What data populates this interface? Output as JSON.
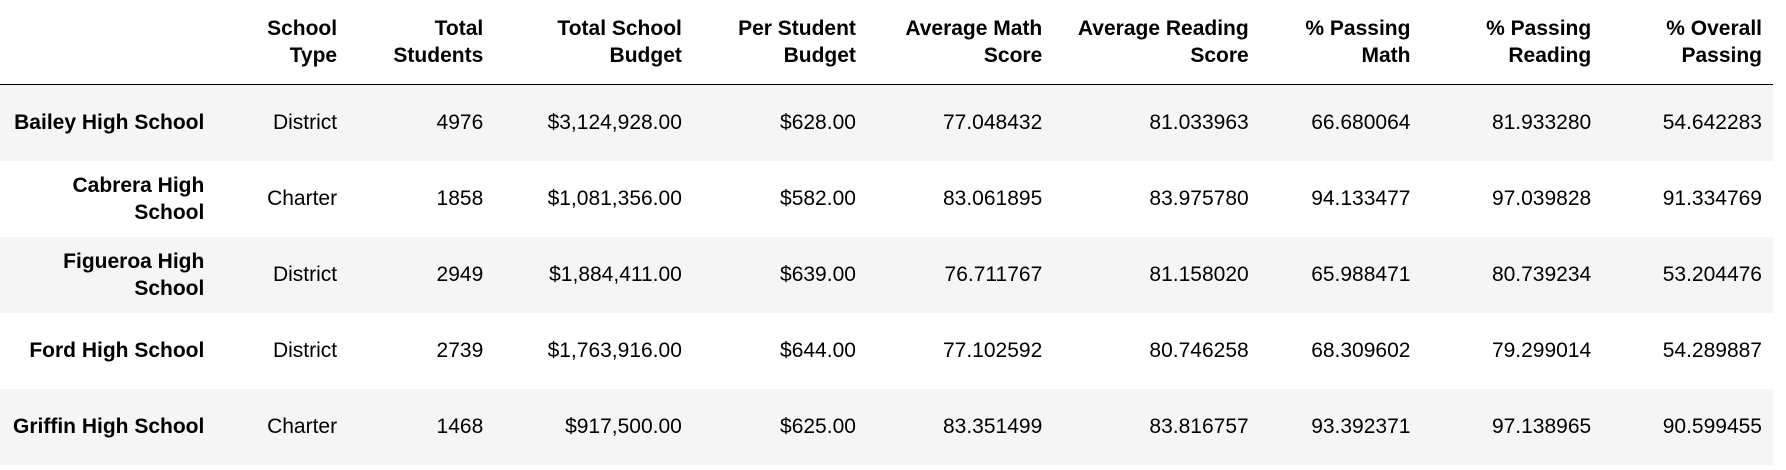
{
  "table": {
    "columns": [
      "",
      "School Type",
      "Total Students",
      "Total School Budget",
      "Per Student Budget",
      "Average Math Score",
      "Average Reading Score",
      "% Passing Math",
      "% Passing Reading",
      "% Overall Passing"
    ],
    "rows": [
      {
        "name": "Bailey High School",
        "cells": [
          "District",
          "4976",
          "$3,124,928.00",
          "$628.00",
          "77.048432",
          "81.033963",
          "66.680064",
          "81.933280",
          "54.642283"
        ]
      },
      {
        "name": "Cabrera High School",
        "cells": [
          "Charter",
          "1858",
          "$1,081,356.00",
          "$582.00",
          "83.061895",
          "83.975780",
          "94.133477",
          "97.039828",
          "91.334769"
        ]
      },
      {
        "name": "Figueroa High School",
        "cells": [
          "District",
          "2949",
          "$1,884,411.00",
          "$639.00",
          "76.711767",
          "81.158020",
          "65.988471",
          "80.739234",
          "53.204476"
        ]
      },
      {
        "name": "Ford High School",
        "cells": [
          "District",
          "2739",
          "$1,763,916.00",
          "$644.00",
          "77.102592",
          "80.746258",
          "68.309602",
          "79.299014",
          "54.289887"
        ]
      },
      {
        "name": "Griffin High School",
        "cells": [
          "Charter",
          "1468",
          "$917,500.00",
          "$625.00",
          "83.351499",
          "83.816757",
          "93.392371",
          "97.138965",
          "90.599455"
        ]
      }
    ]
  }
}
